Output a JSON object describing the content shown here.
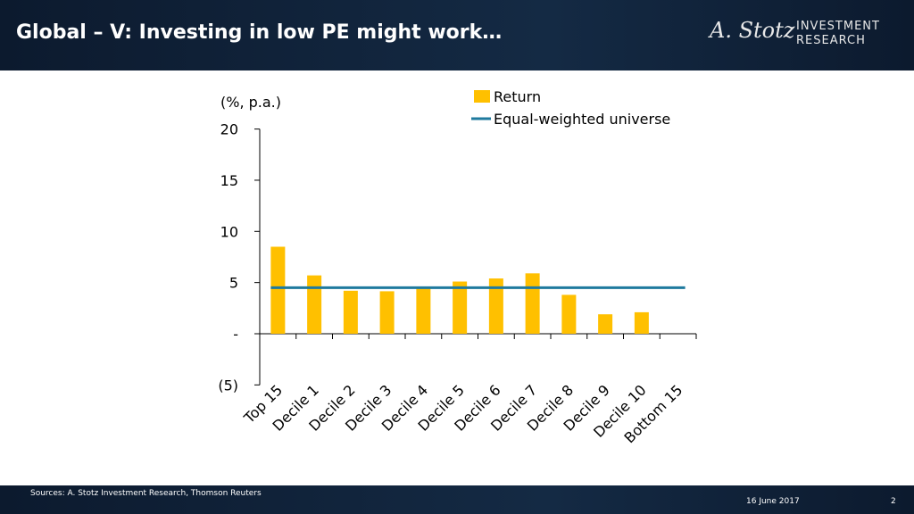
{
  "header": {
    "title": "Global – V: Investing in low PE might work…",
    "logo_script": "A. Stotz",
    "logo_line1": "INVESTMENT",
    "logo_line2": "RESEARCH"
  },
  "footer": {
    "source": "Sources: A. Stotz Investment Research, Thomson Reuters",
    "date": "16 June 2017",
    "page": "2"
  },
  "colors": {
    "bar": "#FFC000",
    "line": "#1F7A9E",
    "header": "#0f213a"
  },
  "chart_data": {
    "type": "bar",
    "ylabel": "(%, p.a.)",
    "ylim": [
      -5,
      20
    ],
    "yticks": [
      20,
      15,
      10,
      5,
      0,
      -5
    ],
    "ytick_labels": [
      "20",
      "15",
      "10",
      "5",
      "-",
      "(5)"
    ],
    "categories": [
      "Top 15",
      "Decile 1",
      "Decile 2",
      "Decile 3",
      "Decile 4",
      "Decile 5",
      "Decile 6",
      "Decile 7",
      "Decile 8",
      "Decile 9",
      "Decile 10",
      "Bottom 15"
    ],
    "series": [
      {
        "name": "Return",
        "type": "bar",
        "values": [
          8.5,
          5.7,
          4.2,
          4.15,
          4.4,
          5.1,
          5.4,
          5.9,
          3.8,
          1.9,
          2.1,
          null
        ]
      },
      {
        "name": "Equal-weighted universe",
        "type": "line",
        "values": [
          4.5,
          4.5,
          4.5,
          4.5,
          4.5,
          4.5,
          4.5,
          4.5,
          4.5,
          4.5,
          4.5,
          4.5
        ]
      }
    ],
    "legend_position": "top",
    "grid": false
  }
}
